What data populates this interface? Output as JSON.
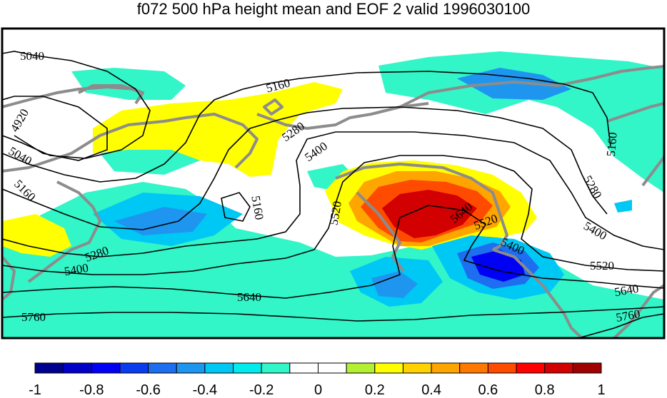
{
  "title": "f072 500 hPa height mean and EOF 2 valid 1996030100",
  "contour_labels": [
    "5040",
    "4920",
    "5040",
    "5160",
    "5160",
    "5280",
    "5400",
    "5520",
    "5160",
    "5280",
    "5400",
    "5640",
    "5520",
    "5400",
    "5520",
    "5280",
    "5400",
    "5640",
    "5160",
    "5400",
    "5520",
    "5640",
    "5760",
    "5640",
    "5760"
  ],
  "colorbar": {
    "ticks": [
      "-1",
      "-0.8",
      "-0.6",
      "-0.4",
      "-0.2",
      "0",
      "0.2",
      "0.4",
      "0.6",
      "0.8",
      "1"
    ],
    "colors": [
      "#00008f",
      "#0000c8",
      "#0000f5",
      "#0a3cf0",
      "#1e6ef0",
      "#1e96f0",
      "#00c8f5",
      "#00ebeb",
      "#32f5c8",
      "#ffffff",
      "#ffffff",
      "#b4f032",
      "#ffff00",
      "#ffd200",
      "#ffa500",
      "#ff7800",
      "#ff4b00",
      "#ff0000",
      "#d20000",
      "#a00000"
    ]
  },
  "colors": {
    "coastline": "#8c8c8c",
    "contour": "#000000",
    "frame": "#000000"
  }
}
